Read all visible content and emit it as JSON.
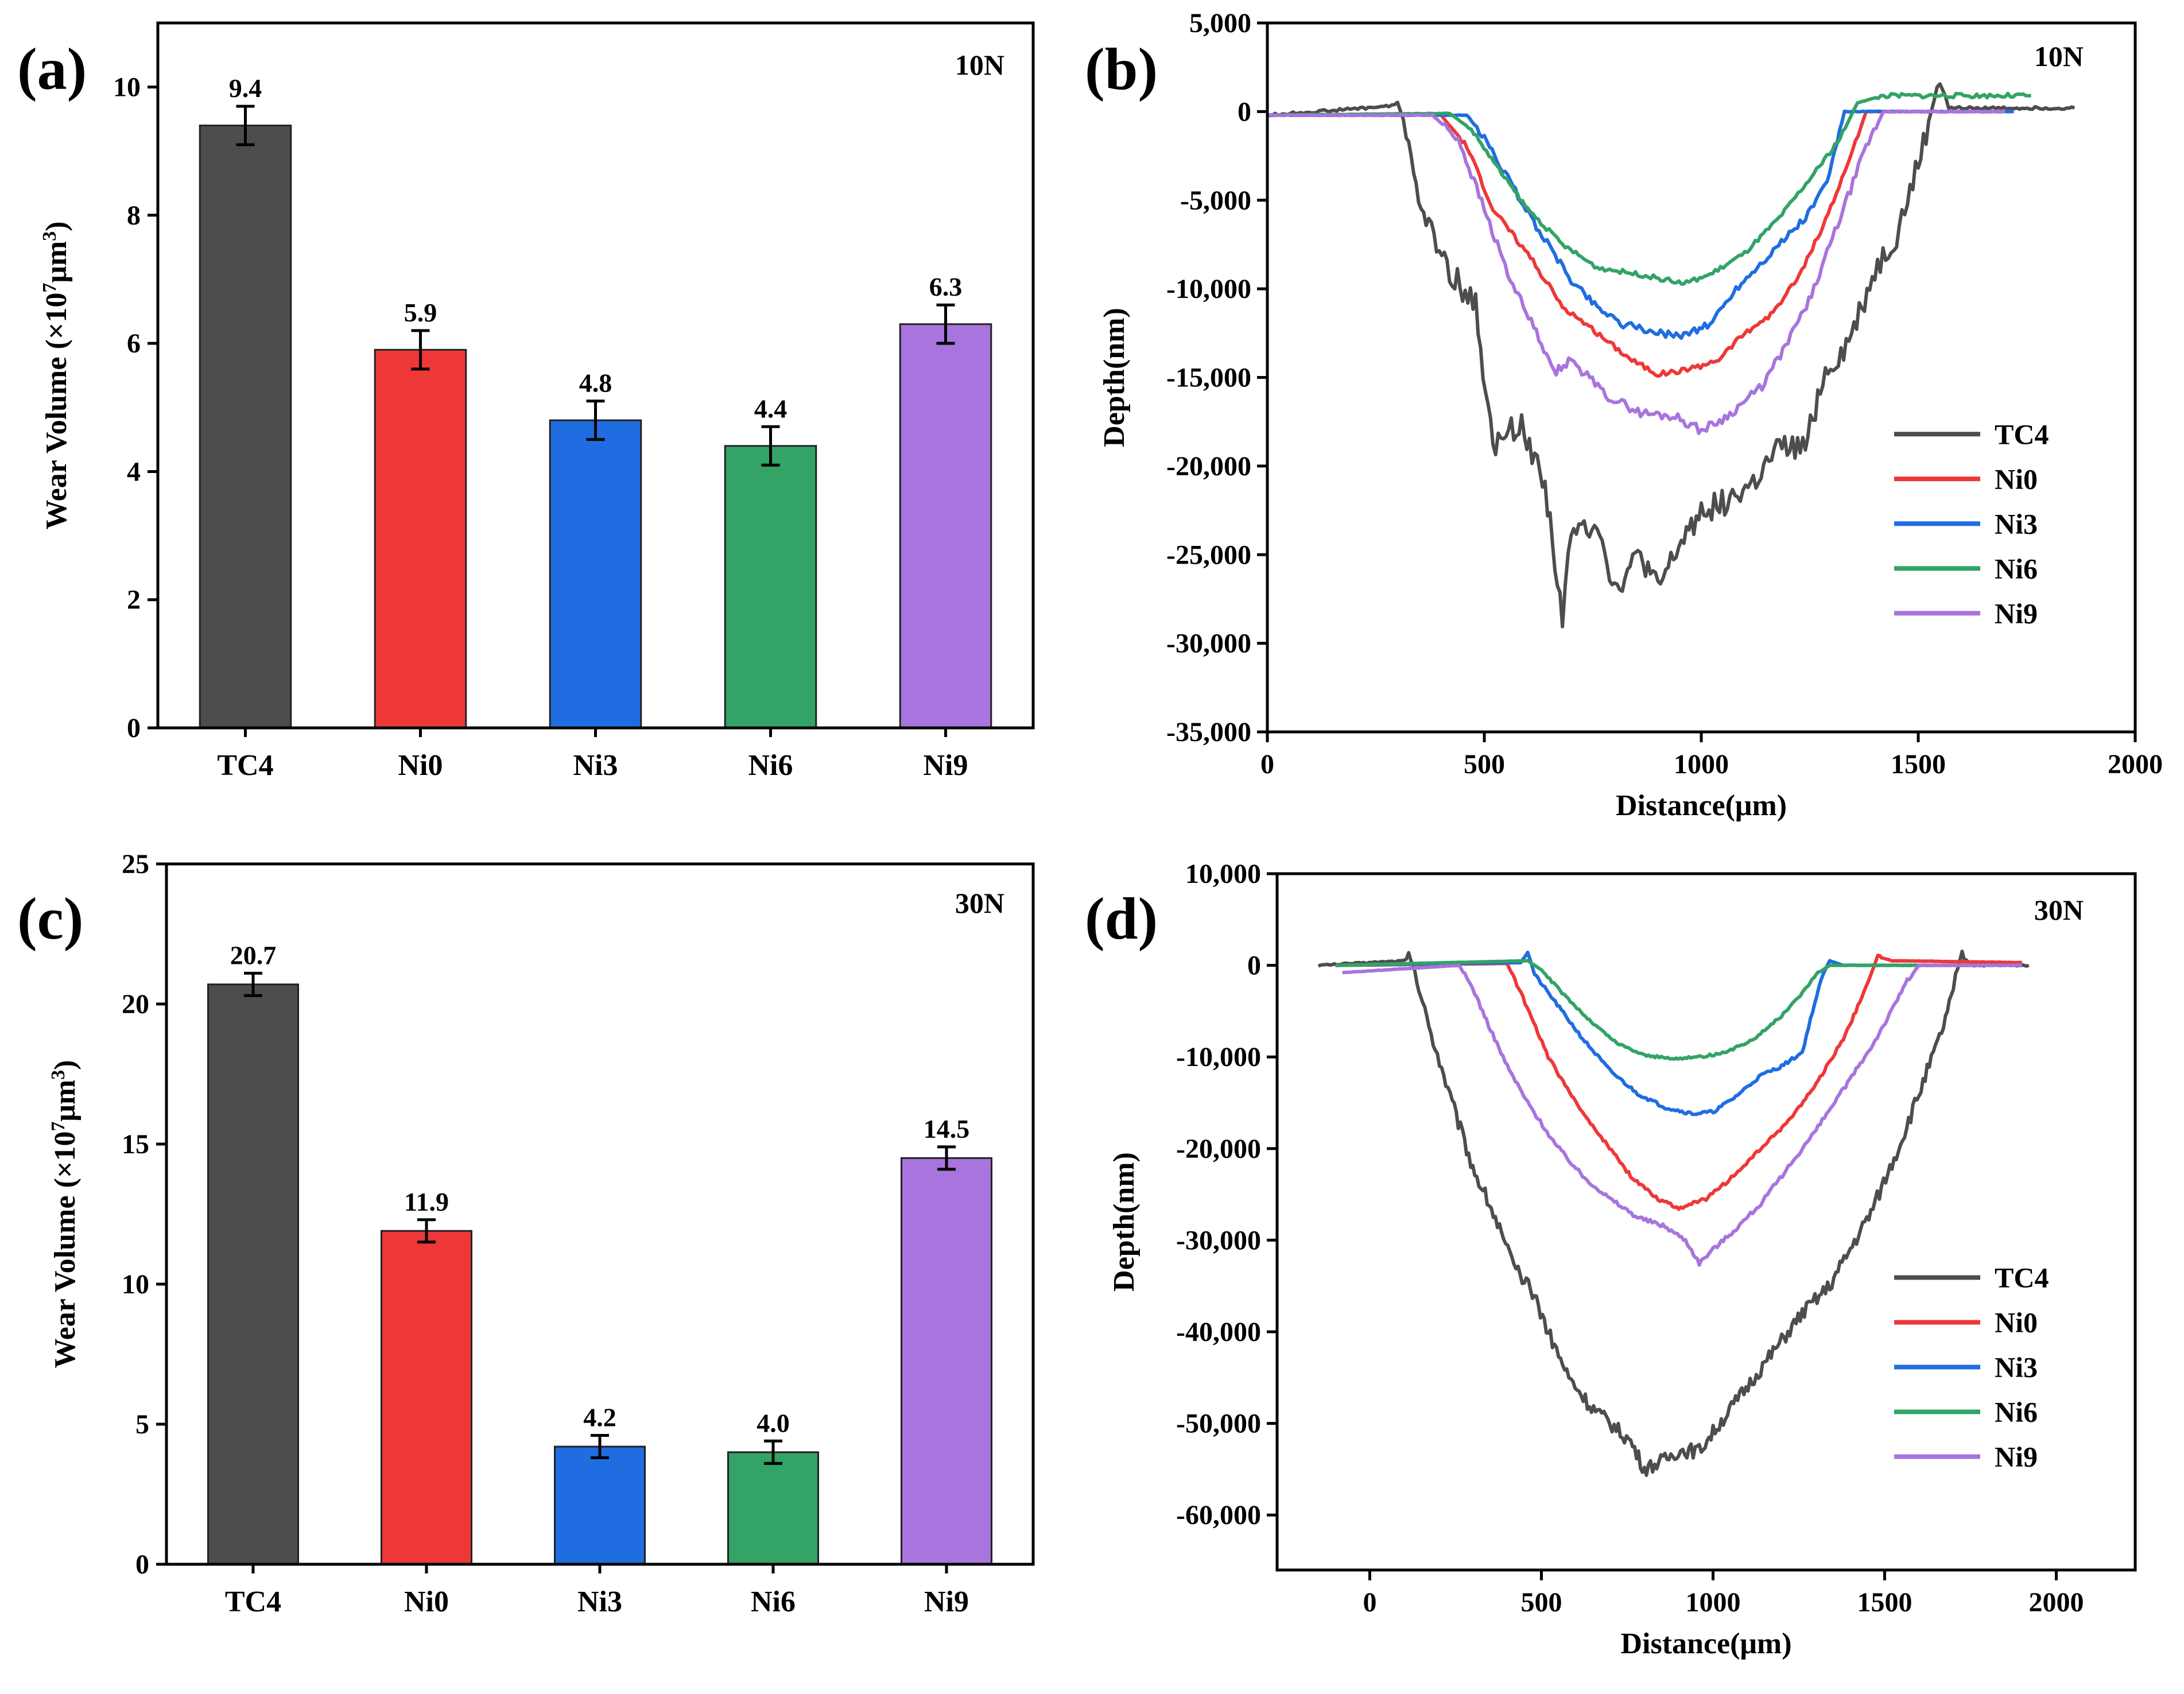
{
  "chart_data": [
    {
      "panel": "(a)",
      "type": "bar",
      "load": "10N",
      "ylabel": "Wear Volume (×10⁷μm³)",
      "ylabel_parts": {
        "main": "Wear Volume (×10",
        "exp1": "7",
        "mid": "μm",
        "exp2": "3",
        "end": ")"
      },
      "categories": [
        "TC4",
        "Ni0",
        "Ni3",
        "Ni6",
        "Ni9"
      ],
      "values": [
        9.4,
        5.9,
        4.8,
        4.4,
        6.3
      ],
      "value_labels": [
        "9.4",
        "5.9",
        "4.8",
        "4.4",
        "6.3"
      ],
      "errors": [
        0.3,
        0.3,
        0.3,
        0.3,
        0.3
      ],
      "colors": [
        "#4d4d4d",
        "#ee3838",
        "#1f6de0",
        "#33a366",
        "#a874dd"
      ],
      "ylim": [
        0,
        11
      ],
      "yticks": [
        0,
        2,
        4,
        6,
        8,
        10
      ],
      "ytick_labels": [
        "0",
        "2",
        "4",
        "6",
        "8",
        "10"
      ]
    },
    {
      "panel": "(b)",
      "type": "line",
      "load": "10N",
      "xlabel": "Distance(μm)",
      "ylabel": "Depth(nm)",
      "xlim": [
        0,
        2000
      ],
      "ylim": [
        -35000,
        5000
      ],
      "xticks": [
        0,
        500,
        1000,
        1500,
        2000
      ],
      "xtick_labels": [
        "0",
        "500",
        "1000",
        "1500",
        "2000"
      ],
      "yticks": [
        5000,
        0,
        -5000,
        -10000,
        -15000,
        -20000,
        -25000,
        -30000,
        -35000
      ],
      "ytick_labels": [
        "5,000",
        "0",
        "-5,000",
        "-10,000",
        "-15,000",
        "-20,000",
        "-25,000",
        "-30,000",
        "-35,000"
      ],
      "legend_position": "lower-right",
      "series": [
        {
          "name": "TC4",
          "color": "#4d4d4d",
          "noise": 1500,
          "points": [
            [
              0,
              -200
            ],
            [
              280,
              300
            ],
            [
              300,
              500
            ],
            [
              320,
              -1000
            ],
            [
              360,
              -6000
            ],
            [
              420,
              -9000
            ],
            [
              480,
              -11000
            ],
            [
              520,
              -19000
            ],
            [
              580,
              -17500
            ],
            [
              640,
              -21000
            ],
            [
              680,
              -28500
            ],
            [
              700,
              -24000
            ],
            [
              760,
              -23000
            ],
            [
              800,
              -27000
            ],
            [
              860,
              -25000
            ],
            [
              900,
              -27000
            ],
            [
              960,
              -24000
            ],
            [
              1000,
              -22500
            ],
            [
              1060,
              -22000
            ],
            [
              1120,
              -21000
            ],
            [
              1180,
              -19000
            ],
            [
              1240,
              -19000
            ],
            [
              1280,
              -15000
            ],
            [
              1340,
              -13000
            ],
            [
              1400,
              -9000
            ],
            [
              1450,
              -7000
            ],
            [
              1500,
              -3000
            ],
            [
              1530,
              0
            ],
            [
              1550,
              2000
            ],
            [
              1570,
              200
            ],
            [
              1860,
              200
            ]
          ]
        },
        {
          "name": "Ni0",
          "color": "#ee3838",
          "noise": 300,
          "points": [
            [
              0,
              -200
            ],
            [
              400,
              -200
            ],
            [
              460,
              -2000
            ],
            [
              520,
              -5500
            ],
            [
              600,
              -8000
            ],
            [
              680,
              -11000
            ],
            [
              760,
              -12500
            ],
            [
              840,
              -14000
            ],
            [
              900,
              -14800
            ],
            [
              980,
              -14500
            ],
            [
              1040,
              -14000
            ],
            [
              1100,
              -12500
            ],
            [
              1160,
              -11500
            ],
            [
              1220,
              -9500
            ],
            [
              1280,
              -6500
            ],
            [
              1330,
              -3500
            ],
            [
              1380,
              0
            ],
            [
              1720,
              0
            ]
          ]
        },
        {
          "name": "Ni3",
          "color": "#1f6de0",
          "noise": 400,
          "points": [
            [
              0,
              -200
            ],
            [
              460,
              -200
            ],
            [
              500,
              -1500
            ],
            [
              560,
              -4000
            ],
            [
              620,
              -6500
            ],
            [
              700,
              -9500
            ],
            [
              760,
              -11000
            ],
            [
              820,
              -12000
            ],
            [
              900,
              -12500
            ],
            [
              960,
              -12600
            ],
            [
              1020,
              -12000
            ],
            [
              1080,
              -10000
            ],
            [
              1160,
              -8000
            ],
            [
              1240,
              -6000
            ],
            [
              1290,
              -4000
            ],
            [
              1330,
              0
            ],
            [
              1360,
              0
            ],
            [
              1720,
              0
            ]
          ]
        },
        {
          "name": "Ni6",
          "color": "#33a366",
          "noise": 250,
          "points": [
            [
              0,
              -200
            ],
            [
              420,
              -100
            ],
            [
              470,
              -1000
            ],
            [
              540,
              -3500
            ],
            [
              600,
              -5500
            ],
            [
              680,
              -7500
            ],
            [
              760,
              -8800
            ],
            [
              860,
              -9200
            ],
            [
              960,
              -9700
            ],
            [
              1020,
              -9200
            ],
            [
              1100,
              -8000
            ],
            [
              1180,
              -6000
            ],
            [
              1260,
              -3500
            ],
            [
              1320,
              -1500
            ],
            [
              1360,
              500
            ],
            [
              1420,
              900
            ],
            [
              1760,
              900
            ]
          ]
        },
        {
          "name": "Ni9",
          "color": "#a874dd",
          "noise": 500,
          "points": [
            [
              0,
              -200
            ],
            [
              380,
              -200
            ],
            [
              440,
              -1500
            ],
            [
              500,
              -5500
            ],
            [
              560,
              -9500
            ],
            [
              620,
              -12500
            ],
            [
              660,
              -14800
            ],
            [
              700,
              -14000
            ],
            [
              780,
              -16000
            ],
            [
              860,
              -17000
            ],
            [
              940,
              -17200
            ],
            [
              1000,
              -18000
            ],
            [
              1060,
              -17200
            ],
            [
              1140,
              -15500
            ],
            [
              1200,
              -13000
            ],
            [
              1260,
              -10000
            ],
            [
              1320,
              -6000
            ],
            [
              1380,
              -2000
            ],
            [
              1420,
              0
            ],
            [
              1700,
              0
            ]
          ]
        }
      ]
    },
    {
      "panel": "(c)",
      "type": "bar",
      "load": "30N",
      "ylabel": "Wear Volume (×10⁷μm³)",
      "ylabel_parts": {
        "main": "Wear Volume (×10",
        "exp1": "7",
        "mid": "μm",
        "exp2": "3",
        "end": ")"
      },
      "categories": [
        "TC4",
        "Ni0",
        "Ni3",
        "Ni6",
        "Ni9"
      ],
      "values": [
        20.7,
        11.9,
        4.2,
        4.0,
        14.5
      ],
      "value_labels": [
        "20.7",
        "11.9",
        "4.2",
        "4.0",
        "14.5"
      ],
      "errors": [
        0.4,
        0.4,
        0.4,
        0.4,
        0.4
      ],
      "colors": [
        "#4d4d4d",
        "#ee3838",
        "#1f6de0",
        "#33a366",
        "#a874dd"
      ],
      "ylim": [
        0,
        25
      ],
      "yticks": [
        0,
        5,
        10,
        15,
        20,
        25
      ],
      "ytick_labels": [
        "0",
        "5",
        "10",
        "15",
        "20",
        "25"
      ]
    },
    {
      "panel": "(d)",
      "type": "line",
      "load": "30N",
      "xlabel": "Distance(μm)",
      "ylabel": "Depth(nm)",
      "xlim": [
        -270,
        2230
      ],
      "ylim": [
        -66000,
        10000
      ],
      "xticks": [
        0,
        500,
        1000,
        1500,
        2000
      ],
      "xtick_labels": [
        "0",
        "500",
        "1000",
        "1500",
        "2000"
      ],
      "yticks": [
        10000,
        0,
        -10000,
        -20000,
        -30000,
        -40000,
        -50000,
        -60000
      ],
      "ytick_labels": [
        "10,000",
        "0",
        "-10,000",
        "-20,000",
        "-30,000",
        "-40,000",
        "-50,000",
        "-60,000"
      ],
      "legend_position": "lower-right",
      "series": [
        {
          "name": "TC4",
          "color": "#4d4d4d",
          "noise": 1600,
          "points": [
            [
              -150,
              0
            ],
            [
              100,
              500
            ],
            [
              120,
              1000
            ],
            [
              160,
              -5000
            ],
            [
              240,
              -15000
            ],
            [
              300,
              -22000
            ],
            [
              360,
              -27000
            ],
            [
              420,
              -33000
            ],
            [
              480,
              -36000
            ],
            [
              520,
              -40000
            ],
            [
              580,
              -45000
            ],
            [
              640,
              -48000
            ],
            [
              700,
              -50000
            ],
            [
              760,
              -52000
            ],
            [
              800,
              -55000
            ],
            [
              860,
              -54000
            ],
            [
              900,
              -53000
            ],
            [
              960,
              -53000
            ],
            [
              1000,
              -51000
            ],
            [
              1060,
              -48000
            ],
            [
              1120,
              -45000
            ],
            [
              1200,
              -41000
            ],
            [
              1260,
              -38000
            ],
            [
              1340,
              -35000
            ],
            [
              1400,
              -31000
            ],
            [
              1460,
              -27000
            ],
            [
              1540,
              -20000
            ],
            [
              1600,
              -14000
            ],
            [
              1660,
              -8000
            ],
            [
              1700,
              -3000
            ],
            [
              1720,
              1000
            ],
            [
              1760,
              0
            ],
            [
              1920,
              0
            ]
          ]
        },
        {
          "name": "Ni0",
          "color": "#ee3838",
          "noise": 350,
          "points": [
            [
              -100,
              0
            ],
            [
              400,
              200
            ],
            [
              440,
              -3000
            ],
            [
              520,
              -10000
            ],
            [
              600,
              -15000
            ],
            [
              680,
              -19000
            ],
            [
              760,
              -23000
            ],
            [
              840,
              -25500
            ],
            [
              900,
              -26500
            ],
            [
              980,
              -25500
            ],
            [
              1060,
              -23000
            ],
            [
              1140,
              -20000
            ],
            [
              1220,
              -17000
            ],
            [
              1300,
              -13000
            ],
            [
              1380,
              -8000
            ],
            [
              1440,
              -3000
            ],
            [
              1480,
              1000
            ],
            [
              1520,
              500
            ],
            [
              1900,
              300
            ]
          ]
        },
        {
          "name": "Ni3",
          "color": "#1f6de0",
          "noise": 350,
          "points": [
            [
              -100,
              0
            ],
            [
              440,
              300
            ],
            [
              460,
              1500
            ],
            [
              480,
              -1000
            ],
            [
              540,
              -4000
            ],
            [
              620,
              -8000
            ],
            [
              700,
              -11500
            ],
            [
              780,
              -14000
            ],
            [
              860,
              -15500
            ],
            [
              940,
              -16200
            ],
            [
              1000,
              -16000
            ],
            [
              1060,
              -14500
            ],
            [
              1140,
              -12000
            ],
            [
              1200,
              -11000
            ],
            [
              1260,
              -9500
            ],
            [
              1290,
              -5000
            ],
            [
              1320,
              -1000
            ],
            [
              1340,
              500
            ],
            [
              1380,
              0
            ],
            [
              1900,
              0
            ]
          ]
        },
        {
          "name": "Ni6",
          "color": "#33a366",
          "noise": 250,
          "points": [
            [
              -100,
              0
            ],
            [
              460,
              500
            ],
            [
              500,
              -500
            ],
            [
              560,
              -3000
            ],
            [
              640,
              -6000
            ],
            [
              720,
              -8500
            ],
            [
              800,
              -9800
            ],
            [
              880,
              -10200
            ],
            [
              960,
              -10000
            ],
            [
              1040,
              -9500
            ],
            [
              1120,
              -8000
            ],
            [
              1200,
              -5500
            ],
            [
              1260,
              -3000
            ],
            [
              1300,
              -1000
            ],
            [
              1340,
              0
            ],
            [
              1900,
              0
            ]
          ]
        },
        {
          "name": "Ni9",
          "color": "#a874dd",
          "noise": 450,
          "points": [
            [
              -80,
              -800
            ],
            [
              260,
              0
            ],
            [
              300,
              -2500
            ],
            [
              340,
              -6000
            ],
            [
              400,
              -11000
            ],
            [
              460,
              -15000
            ],
            [
              540,
              -19500
            ],
            [
              620,
              -23000
            ],
            [
              700,
              -25500
            ],
            [
              780,
              -27500
            ],
            [
              860,
              -28500
            ],
            [
              920,
              -30000
            ],
            [
              960,
              -32500
            ],
            [
              1000,
              -31000
            ],
            [
              1060,
              -29000
            ],
            [
              1140,
              -26000
            ],
            [
              1220,
              -22000
            ],
            [
              1300,
              -18000
            ],
            [
              1380,
              -13500
            ],
            [
              1460,
              -9000
            ],
            [
              1520,
              -5000
            ],
            [
              1560,
              -2000
            ],
            [
              1600,
              0
            ],
            [
              1900,
              0
            ]
          ]
        }
      ]
    }
  ]
}
